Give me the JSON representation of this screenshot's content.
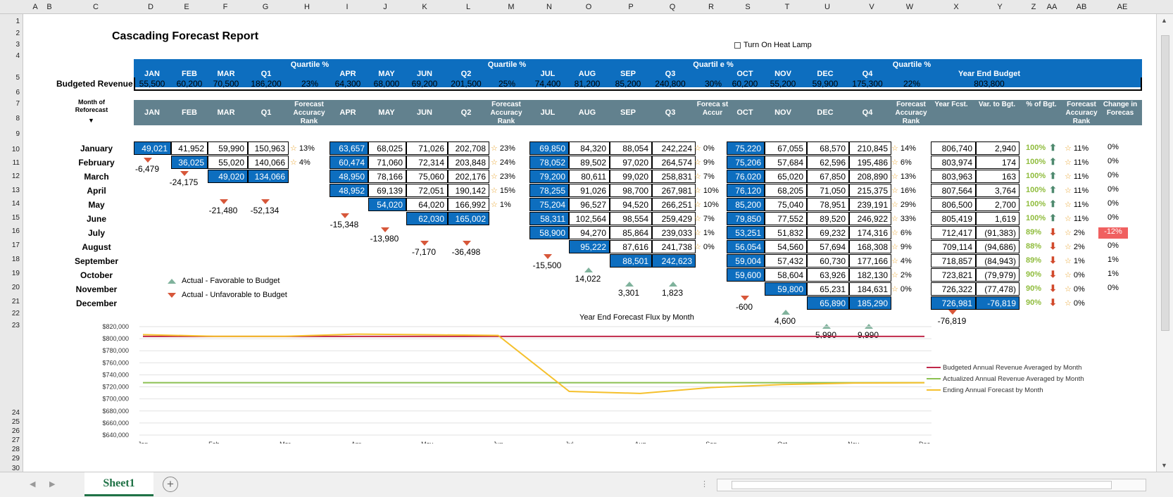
{
  "columns": [
    "A",
    "B",
    "C",
    "D",
    "E",
    "F",
    "G",
    "H",
    "I",
    "J",
    "K",
    "L",
    "M",
    "N",
    "O",
    "P",
    "Q",
    "R",
    "S",
    "T",
    "U",
    "V",
    "W",
    "X",
    "Y",
    "Z",
    "AA",
    "AB",
    "AE"
  ],
  "rows": [
    "1",
    "2",
    "3",
    "4",
    "5",
    "6",
    "7",
    "8",
    "9",
    "10",
    "11",
    "12",
    "13",
    "14",
    "15",
    "16",
    "17",
    "18",
    "19",
    "20",
    "21",
    "22",
    "23",
    "24",
    "25",
    "26",
    "27",
    "28",
    "29",
    "30"
  ],
  "title": "Cascading Forecast Report",
  "heat_lamp_label": "Turn On Heat Lamp",
  "budget_header": {
    "months": [
      "JAN",
      "FEB",
      "MAR",
      "Q1",
      "Quartile %",
      "APR",
      "MAY",
      "JUN",
      "Q2",
      "Quartile %",
      "JUL",
      "AUG",
      "SEP",
      "Q3",
      "Quartil e %",
      "OCT",
      "NOV",
      "DEC",
      "Q4",
      "Quartile %",
      "Year End Budget"
    ],
    "row_label": "Budgeted Revenue",
    "values": [
      "55,500",
      "60,200",
      "70,500",
      "186,200",
      "23%",
      "64,300",
      "68,000",
      "69,200",
      "201,500",
      "25%",
      "74,400",
      "81,200",
      "85,200",
      "240,800",
      "30%",
      "60,200",
      "55,200",
      "59,900",
      "175,300",
      "22%",
      "803,800"
    ]
  },
  "forecast_header": {
    "month_of_reforecast": "Month of Reforecast",
    "labels": [
      "JAN",
      "FEB",
      "MAR",
      "Q1",
      "Forecast Accuracy Rank",
      "APR",
      "MAY",
      "JUN",
      "Q2",
      "Forecast Accuracy Rank",
      "JUL",
      "AUG",
      "SEP",
      "Q3",
      "Foreca st Accur",
      "OCT",
      "NOV",
      "DEC",
      "Q4",
      "Forecast Accuracy Rank",
      "Year Fcst.",
      "Var. to Bgt.",
      "% of Bgt.",
      "Forecast Accuracy Rank",
      "Change in Forecas"
    ]
  },
  "months": [
    "January",
    "February",
    "March",
    "April",
    "May",
    "June",
    "July",
    "August",
    "September",
    "October",
    "November",
    "December"
  ],
  "q1": [
    [
      "49,021",
      "41,952",
      "59,990",
      "150,963"
    ],
    [
      "",
      "36,025",
      "55,020",
      "140,066"
    ],
    [
      "",
      "",
      "49,020",
      "134,066"
    ]
  ],
  "q1_rank": [
    "13%",
    "4%"
  ],
  "q2": [
    [
      "63,657",
      "68,025",
      "71,026",
      "202,708"
    ],
    [
      "60,474",
      "71,060",
      "72,314",
      "203,848"
    ],
    [
      "48,950",
      "78,166",
      "75,060",
      "202,176"
    ],
    [
      "48,952",
      "69,139",
      "72,051",
      "190,142"
    ],
    [
      "",
      "54,020",
      "64,020",
      "166,992"
    ],
    [
      "",
      "",
      "62,030",
      "165,002"
    ]
  ],
  "q2_rank": [
    "23%",
    "24%",
    "23%",
    "15%",
    "1%"
  ],
  "q3": [
    [
      "69,850",
      "84,320",
      "88,054",
      "242,224"
    ],
    [
      "78,052",
      "89,502",
      "97,020",
      "264,574"
    ],
    [
      "79,200",
      "80,611",
      "99,020",
      "258,831"
    ],
    [
      "78,255",
      "91,026",
      "98,700",
      "267,981"
    ],
    [
      "75,204",
      "96,527",
      "94,520",
      "266,251"
    ],
    [
      "58,311",
      "102,564",
      "98,554",
      "259,429"
    ],
    [
      "58,900",
      "94,270",
      "85,864",
      "239,033"
    ],
    [
      "",
      "95,222",
      "87,616",
      "241,738"
    ],
    [
      "",
      "",
      "88,501",
      "242,623"
    ]
  ],
  "q3_rank": [
    "0%",
    "9%",
    "7%",
    "10%",
    "10%",
    "7%",
    "1%",
    "0%"
  ],
  "q4": [
    [
      "75,220",
      "67,055",
      "68,570",
      "210,845"
    ],
    [
      "75,206",
      "57,684",
      "62,596",
      "195,486"
    ],
    [
      "76,020",
      "65,020",
      "67,850",
      "208,890"
    ],
    [
      "76,120",
      "68,205",
      "71,050",
      "215,375"
    ],
    [
      "85,200",
      "75,040",
      "78,951",
      "239,191"
    ],
    [
      "79,850",
      "77,552",
      "89,520",
      "246,922"
    ],
    [
      "53,251",
      "51,832",
      "69,232",
      "174,316"
    ],
    [
      "56,054",
      "54,560",
      "57,694",
      "168,308"
    ],
    [
      "59,004",
      "57,432",
      "60,730",
      "177,166"
    ],
    [
      "59,600",
      "58,604",
      "63,926",
      "182,130"
    ],
    [
      "",
      "59,800",
      "65,231",
      "184,631"
    ],
    [
      "",
      "",
      "65,890",
      "185,290"
    ]
  ],
  "q4_rank": [
    "14%",
    "6%",
    "13%",
    "16%",
    "29%",
    "33%",
    "6%",
    "9%",
    "4%",
    "2%",
    "0%"
  ],
  "summary": [
    [
      "806,740",
      "2,940",
      "100%",
      "11%",
      "0%"
    ],
    [
      "803,974",
      "174",
      "100%",
      "11%",
      "0%"
    ],
    [
      "803,963",
      "163",
      "100%",
      "11%",
      "0%"
    ],
    [
      "807,564",
      "3,764",
      "100%",
      "11%",
      "0%"
    ],
    [
      "806,500",
      "2,700",
      "100%",
      "11%",
      "0%"
    ],
    [
      "805,419",
      "1,619",
      "100%",
      "11%",
      "0%"
    ],
    [
      "712,417",
      "(91,383)",
      "89%",
      "2%",
      "-12%"
    ],
    [
      "709,114",
      "(94,686)",
      "88%",
      "2%",
      "0%"
    ],
    [
      "718,857",
      "(84,943)",
      "89%",
      "1%",
      "1%"
    ],
    [
      "723,821",
      "(79,979)",
      "90%",
      "0%",
      "1%"
    ],
    [
      "726,322",
      "(77,478)",
      "90%",
      "0%",
      "0%"
    ],
    [
      "726,981",
      "-76,819",
      "90%",
      "0%",
      ""
    ]
  ],
  "deltas": {
    "q1": [
      "-6,479",
      "-24,175",
      "-21,480",
      "-52,134"
    ],
    "q2": [
      "-15,348",
      "-13,980",
      "-7,170",
      "-36,498"
    ],
    "q3": [
      "-15,500",
      "14,022",
      "3,301",
      "1,823"
    ],
    "q4": [
      "-600",
      "4,600",
      "5,990",
      "9,990"
    ],
    "year": "-76,819"
  },
  "legend_markers": [
    "Actual - Favorable to Budget",
    "Actual - Unfavorable to Budget"
  ],
  "chart_data": {
    "type": "line",
    "title": "Year End Forecast Flux by Month",
    "categories": [
      "Jan",
      "Feb",
      "Mar",
      "Apr",
      "May",
      "Jun",
      "Jul",
      "Aug",
      "Sep",
      "Oct",
      "Nov",
      "Dec"
    ],
    "ylim": [
      640000,
      820000
    ],
    "yticks": [
      "$820,000",
      "$800,000",
      "$780,000",
      "$760,000",
      "$740,000",
      "$720,000",
      "$700,000",
      "$680,000",
      "$660,000",
      "$640,000"
    ],
    "series": [
      {
        "name": "Budgeted Annual Revenue Averaged by Month",
        "color": "#c0284a",
        "values": [
          803800,
          803800,
          803800,
          803800,
          803800,
          803800,
          803800,
          803800,
          803800,
          803800,
          803800,
          803800
        ]
      },
      {
        "name": "Actualized Annual Revenue Averaged by Month",
        "color": "#8cc152",
        "values": [
          726981,
          726981,
          726981,
          726981,
          726981,
          726981,
          726981,
          726981,
          726981,
          726981,
          726981,
          726981
        ]
      },
      {
        "name": "Ending Annual Forecast by Month",
        "color": "#f5c02c",
        "values": [
          806740,
          803974,
          803963,
          807564,
          806500,
          805419,
          712417,
          709114,
          718857,
          723821,
          726322,
          726981
        ]
      }
    ]
  },
  "sheet_tab": "Sheet1"
}
